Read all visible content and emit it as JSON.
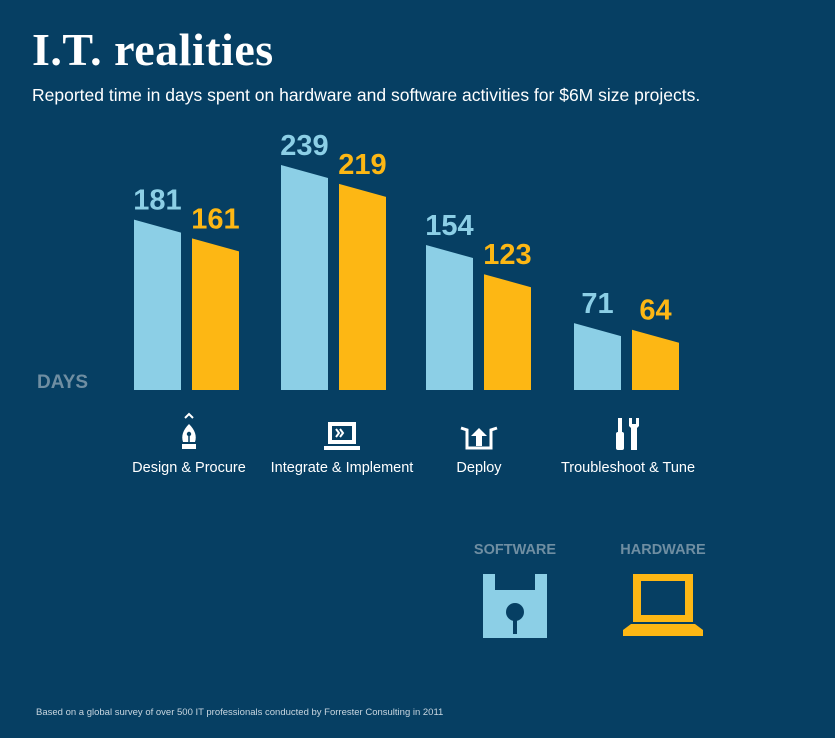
{
  "title": "I.T. realities",
  "subtitle": "Reported time in days spent on hardware and software activities for $6M size projects.",
  "y_unit_label": "DAYS",
  "chart_data": {
    "type": "bar",
    "categories": [
      "Design & Procure",
      "Integrate & Implement",
      "Deploy",
      "Troubleshoot & Tune"
    ],
    "series": [
      {
        "name": "SOFTWARE",
        "values": [
          181,
          239,
          154,
          71
        ],
        "color": "#8ccfe6"
      },
      {
        "name": "HARDWARE",
        "values": [
          161,
          219,
          123,
          64
        ],
        "color": "#fdb714"
      }
    ],
    "ylabel": "DAYS",
    "ylim": [
      0,
      239
    ],
    "grid": false,
    "legend": "bottom-right"
  },
  "categories": [
    {
      "label": "Design & Procure",
      "icon": "pen-nib-icon"
    },
    {
      "label": "Integrate & Implement",
      "icon": "monitor-icon"
    },
    {
      "label": "Deploy",
      "icon": "deploy-upload-icon"
    },
    {
      "label": "Troubleshoot & Tune",
      "icon": "tools-icon"
    }
  ],
  "legend": {
    "software": {
      "label": "SOFTWARE",
      "icon": "floppy-disk-icon"
    },
    "hardware": {
      "label": "HARDWARE",
      "icon": "laptop-icon"
    }
  },
  "footnote": "Based on a global survey of over 500 IT professionals conducted by Forrester Consulting in 2011"
}
